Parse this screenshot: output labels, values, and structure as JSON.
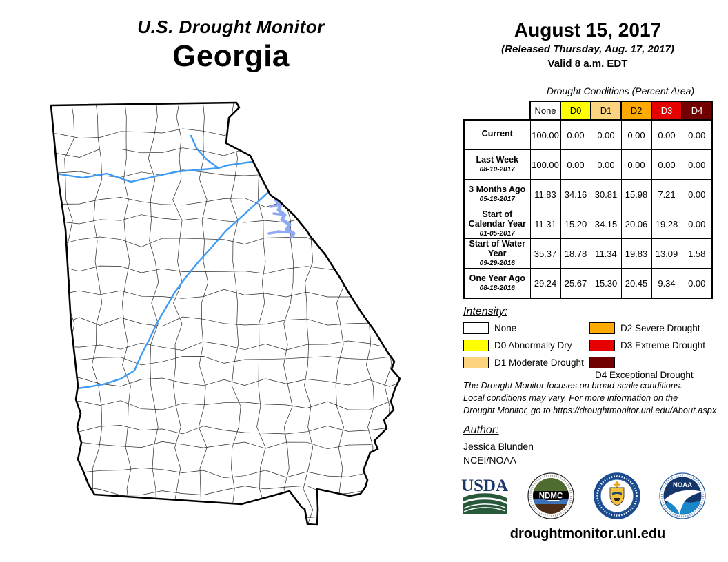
{
  "title": {
    "line1": "U.S. Drought Monitor",
    "line2": "Georgia"
  },
  "header": {
    "date": "August 15, 2017",
    "released": "(Released Thursday, Aug. 17, 2017)",
    "valid": "Valid 8 a.m. EDT"
  },
  "table": {
    "caption": "Drought Conditions (Percent Area)",
    "columns": [
      "None",
      "D0",
      "D1",
      "D2",
      "D3",
      "D4"
    ],
    "rows": [
      {
        "label": "Current",
        "date": "",
        "values": [
          "100.00",
          "0.00",
          "0.00",
          "0.00",
          "0.00",
          "0.00"
        ]
      },
      {
        "label": "Last Week",
        "date": "08-10-2017",
        "values": [
          "100.00",
          "0.00",
          "0.00",
          "0.00",
          "0.00",
          "0.00"
        ]
      },
      {
        "label": "3 Months Ago",
        "date": "05-18-2017",
        "values": [
          "11.83",
          "34.16",
          "30.81",
          "15.98",
          "7.21",
          "0.00"
        ]
      },
      {
        "label": "Start of Calendar Year",
        "date": "01-05-2017",
        "values": [
          "11.31",
          "15.20",
          "34.15",
          "20.06",
          "19.28",
          "0.00"
        ]
      },
      {
        "label": "Start of Water Year",
        "date": "09-29-2016",
        "values": [
          "35.37",
          "18.78",
          "11.34",
          "19.83",
          "13.09",
          "1.58"
        ]
      },
      {
        "label": "One Year Ago",
        "date": "08-18-2016",
        "values": [
          "29.24",
          "25.67",
          "15.30",
          "20.45",
          "9.34",
          "0.00"
        ]
      }
    ]
  },
  "colors": {
    "none": "#FFFFFF",
    "d0": "#FFFF00",
    "d1": "#FCD37F",
    "d2": "#FFAA00",
    "d3": "#E60000",
    "d4": "#730000",
    "river": "#3E9BF4",
    "lake": "#8FA9F2"
  },
  "legend": {
    "heading": "Intensity:",
    "items": [
      {
        "label": "None",
        "color": "#FFFFFF"
      },
      {
        "label": "D0 Abnormally Dry",
        "color": "#FFFF00"
      },
      {
        "label": "D1 Moderate Drought",
        "color": "#FCD37F"
      },
      {
        "label": "D2 Severe Drought",
        "color": "#FFAA00"
      },
      {
        "label": "D3 Extreme Drought",
        "color": "#E60000"
      },
      {
        "label": "D4 Exceptional Drought",
        "color": "#730000"
      }
    ]
  },
  "disclaimer": {
    "line1": "The Drought Monitor focuses on broad-scale conditions.",
    "line2": "Local conditions may vary. For more information on the",
    "line3": "Drought Monitor, go to https://droughtmonitor.unl.edu/About.aspx"
  },
  "author": {
    "heading": "Author:",
    "name": "Jessica Blunden",
    "org": "NCEI/NOAA"
  },
  "logos": {
    "usda_text": "USDA",
    "ndmc_text": "NDMC",
    "noaa_text": "NOAA",
    "names": [
      "USDA",
      "National Drought Mitigation Center",
      "U.S. Department of Commerce",
      "NOAA"
    ]
  },
  "footer": {
    "url": "droughtmonitor.unl.edu"
  },
  "map": {
    "region": "Georgia",
    "fill": "#FFFFFF"
  }
}
